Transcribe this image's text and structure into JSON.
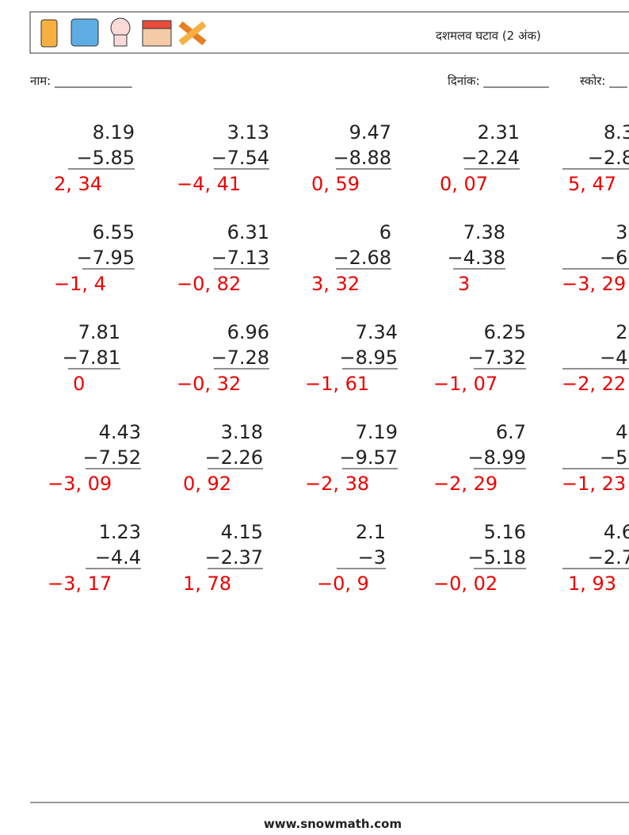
{
  "header": {
    "title": "दशमलव घटाव (2 अंक)"
  },
  "fields": {
    "name": "नाम: _____________",
    "date": "दिनांक: ___________",
    "score": "स्कोर: ___"
  },
  "problems": [
    [
      {
        "a": "8.19",
        "b": "−5.85",
        "answer": "2, 34"
      },
      {
        "a": "3.13",
        "b": "−7.54",
        "answer": "−4, 41"
      },
      {
        "a": "9.47",
        "b": "−8.88",
        "answer": "0, 59"
      },
      {
        "a": "2.31",
        "b": "−2.24",
        "answer": "0, 07"
      },
      {
        "a": "8.3",
        "b": "−2.8",
        "answer": "5, 47"
      }
    ],
    [
      {
        "a": "6.55",
        "b": "−7.95",
        "answer": "−1, 4"
      },
      {
        "a": "6.31",
        "b": "−7.13",
        "answer": "−0, 82"
      },
      {
        "a": "6",
        "b": "−2.68",
        "answer": "3, 32"
      },
      {
        "a": "7.38",
        "b": "−4.38",
        "answer": "3"
      },
      {
        "a": "3.",
        "b": "−6.",
        "answer": "−3, 29"
      }
    ],
    [
      {
        "a": "7.81",
        "b": "−7.81",
        "answer": "0"
      },
      {
        "a": "6.96",
        "b": "−7.28",
        "answer": "−0, 32"
      },
      {
        "a": "7.34",
        "b": "−8.95",
        "answer": "−1, 61"
      },
      {
        "a": "6.25",
        "b": "−7.32",
        "answer": "−1, 07"
      },
      {
        "a": "2.",
        "b": "−4.",
        "answer": "−2, 22"
      }
    ],
    [
      {
        "a": "4.43",
        "b": "−7.52",
        "answer": "−3, 09"
      },
      {
        "a": "3.18",
        "b": "−2.26",
        "answer": "0, 92"
      },
      {
        "a": "7.19",
        "b": "−9.57",
        "answer": "−2, 38"
      },
      {
        "a": "6.7",
        "b": "−8.99",
        "answer": "−2, 29"
      },
      {
        "a": "4.",
        "b": "−5.",
        "answer": "−1, 23"
      }
    ],
    [
      {
        "a": "1.23",
        "b": "−4.4",
        "answer": "−3, 17"
      },
      {
        "a": "4.15",
        "b": "−2.37",
        "answer": "1, 78"
      },
      {
        "a": "2.1",
        "b": "−3",
        "answer": "−0, 9"
      },
      {
        "a": "5.16",
        "b": "−5.18",
        "answer": "−0, 02"
      },
      {
        "a": "4.6",
        "b": "−2.7",
        "answer": "1, 93"
      }
    ]
  ],
  "footer": {
    "site": "www.snowmath.com"
  }
}
